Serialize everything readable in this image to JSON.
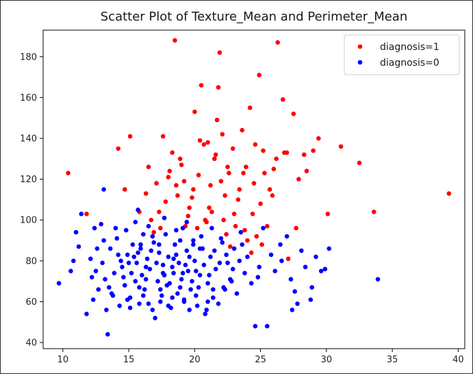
{
  "chart_data": {
    "type": "scatter",
    "title": "Scatter Plot of Texture_Mean and Perimeter_Mean",
    "xlabel": "",
    "ylabel": "",
    "xlim": [
      8.5,
      40.5
    ],
    "ylim": [
      37,
      193
    ],
    "x_ticks": [
      10,
      15,
      20,
      25,
      30,
      35,
      40
    ],
    "y_ticks": [
      40,
      60,
      80,
      100,
      120,
      140,
      160,
      180
    ],
    "grid": false,
    "legend_position": "top-right",
    "series": [
      {
        "name": "diagnosis=1",
        "color": "#ff0000",
        "points": [
          [
            10.4,
            123
          ],
          [
            11.8,
            103
          ],
          [
            14.2,
            135
          ],
          [
            14.7,
            115
          ],
          [
            15.1,
            141
          ],
          [
            15.8,
            104
          ],
          [
            16.3,
            113
          ],
          [
            16.5,
            126
          ],
          [
            16.7,
            100
          ],
          [
            17.1,
            118
          ],
          [
            17.4,
            96
          ],
          [
            17.8,
            109
          ],
          [
            18.1,
            124
          ],
          [
            18.3,
            133
          ],
          [
            18.5,
            188
          ],
          [
            18.9,
            130
          ],
          [
            19.2,
            119
          ],
          [
            19.5,
            102
          ],
          [
            19.8,
            111
          ],
          [
            20.0,
            153
          ],
          [
            20.3,
            122
          ],
          [
            20.5,
            166
          ],
          [
            20.8,
            100
          ],
          [
            21.0,
            138
          ],
          [
            21.2,
            117
          ],
          [
            21.5,
            130
          ],
          [
            21.8,
            165
          ],
          [
            21.9,
            182
          ],
          [
            22.1,
            142
          ],
          [
            22.3,
            112
          ],
          [
            22.6,
            123
          ],
          [
            22.9,
            135
          ],
          [
            23.1,
            97
          ],
          [
            23.3,
            110
          ],
          [
            23.6,
            144
          ],
          [
            23.9,
            126
          ],
          [
            24.2,
            155
          ],
          [
            24.5,
            118
          ],
          [
            24.9,
            171
          ],
          [
            25.2,
            134
          ],
          [
            25.5,
            97
          ],
          [
            25.9,
            112
          ],
          [
            26.3,
            187
          ],
          [
            26.7,
            159
          ],
          [
            27.0,
            133
          ],
          [
            27.5,
            152
          ],
          [
            27.9,
            120
          ],
          [
            28.3,
            132
          ],
          [
            29.0,
            134
          ],
          [
            29.4,
            140
          ],
          [
            30.1,
            103
          ],
          [
            31.1,
            136
          ],
          [
            32.5,
            128
          ],
          [
            33.6,
            104
          ],
          [
            39.3,
            113
          ],
          [
            17.6,
            141
          ],
          [
            19.0,
            127
          ],
          [
            20.7,
            137
          ],
          [
            22.0,
            119
          ],
          [
            23.0,
            103
          ],
          [
            24.0,
            90
          ],
          [
            25.0,
            108
          ],
          [
            26.0,
            125
          ],
          [
            19.6,
            106
          ],
          [
            21.3,
            104
          ],
          [
            22.7,
            87
          ],
          [
            24.7,
            92
          ],
          [
            26.2,
            130
          ],
          [
            27.1,
            81
          ],
          [
            28.5,
            124
          ],
          [
            17.3,
            104
          ],
          [
            18.7,
            112
          ],
          [
            21.7,
            149
          ],
          [
            23.7,
            123
          ],
          [
            25.7,
            115
          ],
          [
            16.9,
            94
          ],
          [
            20.2,
            96
          ],
          [
            22.4,
            93
          ],
          [
            24.3,
            84
          ],
          [
            27.7,
            96
          ],
          [
            18.0,
            121
          ],
          [
            19.3,
            97
          ],
          [
            21.1,
            106
          ],
          [
            23.4,
            115
          ],
          [
            25.3,
            123
          ],
          [
            20.9,
            99
          ],
          [
            22.5,
            126
          ],
          [
            24.6,
            137
          ],
          [
            26.8,
            133
          ],
          [
            19.9,
            115
          ],
          [
            21.6,
            132
          ],
          [
            23.8,
            95
          ],
          [
            25.1,
            88
          ],
          [
            18.6,
            117
          ],
          [
            20.4,
            139
          ],
          [
            22.2,
            100
          ],
          [
            24.4,
            103
          ]
        ]
      },
      {
        "name": "diagnosis=0",
        "color": "#0000ff",
        "points": [
          [
            9.7,
            69
          ],
          [
            10.6,
            75
          ],
          [
            10.8,
            80
          ],
          [
            11.0,
            94
          ],
          [
            11.2,
            87
          ],
          [
            11.4,
            103
          ],
          [
            11.8,
            54
          ],
          [
            12.1,
            81
          ],
          [
            12.3,
            61
          ],
          [
            12.5,
            75
          ],
          [
            12.7,
            66
          ],
          [
            12.9,
            98
          ],
          [
            13.1,
            115
          ],
          [
            13.2,
            71
          ],
          [
            13.3,
            56
          ],
          [
            13.4,
            44
          ],
          [
            13.6,
            86
          ],
          [
            13.8,
            63
          ],
          [
            14.1,
            91
          ],
          [
            14.3,
            58
          ],
          [
            14.5,
            77
          ],
          [
            14.7,
            68
          ],
          [
            14.8,
            95
          ],
          [
            14.9,
            83
          ],
          [
            15.1,
            62
          ],
          [
            15.2,
            74
          ],
          [
            15.3,
            88
          ],
          [
            15.5,
            70
          ],
          [
            15.6,
            79
          ],
          [
            15.7,
            105
          ],
          [
            15.8,
            59
          ],
          [
            15.9,
            86
          ],
          [
            16.0,
            73
          ],
          [
            16.1,
            93
          ],
          [
            16.2,
            66
          ],
          [
            16.4,
            81
          ],
          [
            16.6,
            76
          ],
          [
            16.8,
            56
          ],
          [
            16.9,
            89
          ],
          [
            17.0,
            52
          ],
          [
            17.2,
            70
          ],
          [
            17.3,
            84
          ],
          [
            17.5,
            63
          ],
          [
            17.6,
            78
          ],
          [
            17.8,
            93
          ],
          [
            17.9,
            68
          ],
          [
            18.0,
            82
          ],
          [
            18.2,
            57
          ],
          [
            18.4,
            74
          ],
          [
            18.5,
            88
          ],
          [
            18.7,
            64
          ],
          [
            18.8,
            79
          ],
          [
            19.0,
            71
          ],
          [
            19.1,
            96
          ],
          [
            19.2,
            60
          ],
          [
            19.4,
            85
          ],
          [
            19.5,
            75
          ],
          [
            19.7,
            66
          ],
          [
            19.9,
            90
          ],
          [
            20.0,
            80
          ],
          [
            20.2,
            58
          ],
          [
            20.4,
            73
          ],
          [
            20.6,
            86
          ],
          [
            20.8,
            54
          ],
          [
            21.0,
            69
          ],
          [
            21.2,
            82
          ],
          [
            21.4,
            62
          ],
          [
            21.6,
            76
          ],
          [
            21.8,
            59
          ],
          [
            22.0,
            91
          ],
          [
            22.2,
            67
          ],
          [
            22.5,
            79
          ],
          [
            22.7,
            71
          ],
          [
            23.0,
            86
          ],
          [
            23.2,
            64
          ],
          [
            23.5,
            94
          ],
          [
            23.8,
            74
          ],
          [
            24.0,
            82
          ],
          [
            24.3,
            69
          ],
          [
            24.6,
            48
          ],
          [
            24.9,
            77
          ],
          [
            25.2,
            96
          ],
          [
            25.5,
            48
          ],
          [
            25.8,
            83
          ],
          [
            26.1,
            75
          ],
          [
            26.5,
            88
          ],
          [
            27.0,
            92
          ],
          [
            27.3,
            71
          ],
          [
            27.6,
            65
          ],
          [
            27.8,
            59
          ],
          [
            28.1,
            85
          ],
          [
            28.4,
            77
          ],
          [
            28.8,
            61
          ],
          [
            29.2,
            82
          ],
          [
            29.6,
            75
          ],
          [
            30.2,
            86
          ],
          [
            33.9,
            71
          ],
          [
            12.2,
            72
          ],
          [
            12.6,
            86
          ],
          [
            13.0,
            79
          ],
          [
            13.5,
            67
          ],
          [
            13.9,
            74
          ],
          [
            14.2,
            83
          ],
          [
            14.6,
            72
          ],
          [
            15.0,
            79
          ],
          [
            15.4,
            82
          ],
          [
            15.8,
            67
          ],
          [
            16.3,
            71
          ],
          [
            16.7,
            85
          ],
          [
            17.1,
            79
          ],
          [
            17.4,
            66
          ],
          [
            17.7,
            73
          ],
          [
            18.1,
            69
          ],
          [
            18.3,
            77
          ],
          [
            18.6,
            83
          ],
          [
            18.9,
            67
          ],
          [
            19.3,
            78
          ],
          [
            19.6,
            82
          ],
          [
            19.8,
            70
          ],
          [
            20.1,
            75
          ],
          [
            20.3,
            67
          ],
          [
            20.7,
            78
          ],
          [
            21.1,
            73
          ],
          [
            21.5,
            85
          ],
          [
            21.9,
            79
          ],
          [
            22.4,
            83
          ],
          [
            22.9,
            76
          ],
          [
            23.4,
            80
          ],
          [
            14.0,
            96
          ],
          [
            15.5,
            99
          ],
          [
            16.5,
            97
          ],
          [
            17.7,
            101
          ],
          [
            18.6,
            95
          ],
          [
            19.4,
            99
          ],
          [
            20.5,
            92
          ],
          [
            21.3,
            96
          ],
          [
            22.1,
            89
          ],
          [
            13.7,
            64
          ],
          [
            14.9,
            61
          ],
          [
            16.1,
            63
          ],
          [
            17.4,
            60
          ],
          [
            18.3,
            62
          ],
          [
            19.2,
            61
          ],
          [
            20.1,
            63
          ],
          [
            21.0,
            60
          ],
          [
            22.3,
            66
          ],
          [
            15.1,
            57
          ],
          [
            16.5,
            59
          ],
          [
            18.0,
            58
          ],
          [
            19.6,
            56
          ],
          [
            20.9,
            56
          ],
          [
            17.3,
            88
          ],
          [
            18.9,
            90
          ],
          [
            20.4,
            86
          ],
          [
            16.8,
            92
          ],
          [
            19.9,
            88
          ],
          [
            15.7,
            84
          ],
          [
            14.4,
            80
          ],
          [
            13.1,
            90
          ],
          [
            12.4,
            96
          ],
          [
            15.9,
            88
          ],
          [
            16.3,
            77
          ],
          [
            17.6,
            74
          ],
          [
            18.4,
            81
          ],
          [
            19.1,
            74
          ],
          [
            21.4,
            66
          ],
          [
            22.8,
            70
          ],
          [
            23.6,
            88
          ],
          [
            24.8,
            72
          ],
          [
            26.6,
            80
          ],
          [
            27.4,
            56
          ],
          [
            28.9,
            67
          ],
          [
            29.9,
            76
          ]
        ]
      }
    ]
  }
}
